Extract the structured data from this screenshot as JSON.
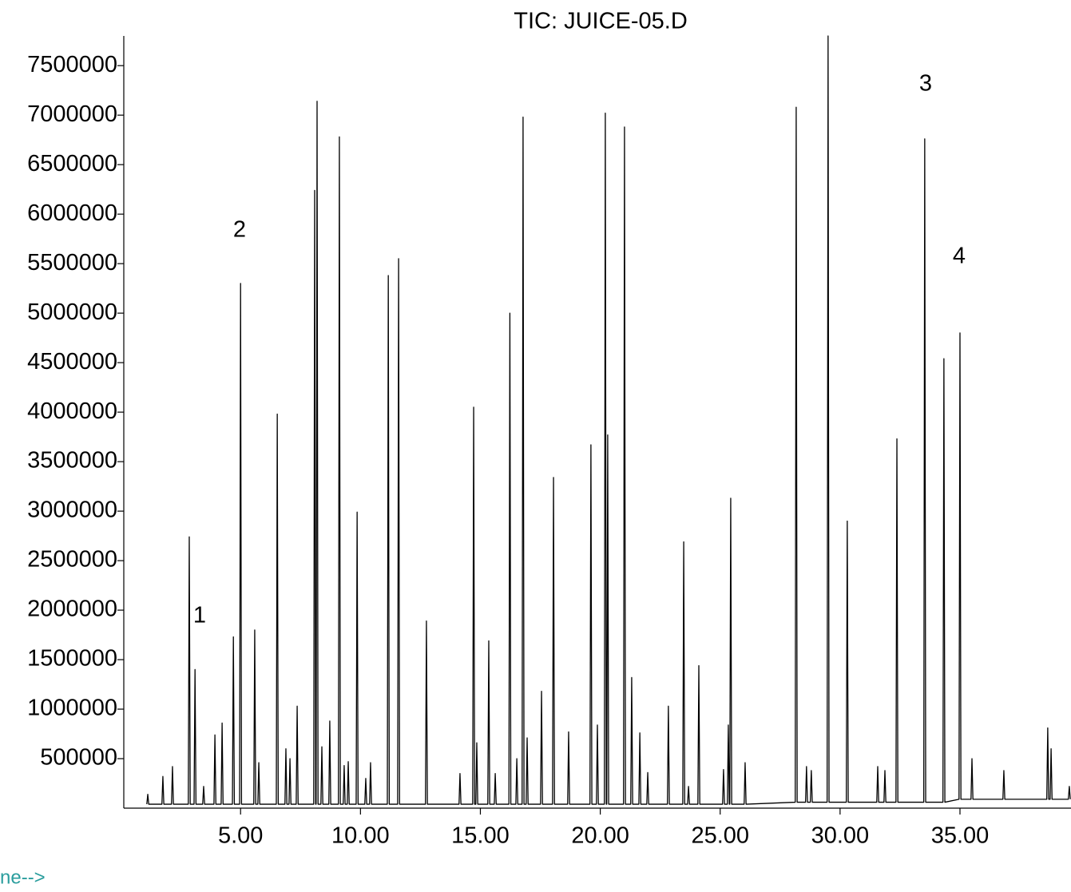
{
  "chart_data": {
    "type": "line",
    "title": "TIC: JUICE-05.D",
    "color": "#000000",
    "xlim": [
      0.13,
      39.63
    ],
    "ylim": [
      0,
      7800000
    ],
    "xticks": [
      {
        "value": 5,
        "label": "5.00"
      },
      {
        "value": 10,
        "label": "10.00"
      },
      {
        "value": 15,
        "label": "15.00"
      },
      {
        "value": 20,
        "label": "20.00"
      },
      {
        "value": 25,
        "label": "25.00"
      },
      {
        "value": 30,
        "label": "30.00"
      },
      {
        "value": 35,
        "label": "35.00"
      }
    ],
    "yticks": [
      500000,
      1000000,
      1500000,
      2000000,
      2500000,
      3000000,
      3500000,
      4000000,
      4500000,
      5000000,
      5500000,
      6000000,
      6500000,
      7000000,
      7500000
    ],
    "annotations": [
      "1",
      "2",
      "3",
      "4"
    ],
    "footer_text": "ne-->",
    "x": [
      1.09,
      1.13,
      1.17,
      1.72,
      1.76,
      1.8,
      2.12,
      2.16,
      2.2,
      2.82,
      2.86,
      2.9,
      3.06,
      3.1,
      3.14,
      3.42,
      3.46,
      3.5,
      3.89,
      3.93,
      3.97,
      4.19,
      4.23,
      4.27,
      4.66,
      4.7,
      4.74,
      4.96,
      5.0,
      5.04,
      5.55,
      5.59,
      5.63,
      5.72,
      5.76,
      5.8,
      6.49,
      6.53,
      6.57,
      6.85,
      6.89,
      6.93,
      7.02,
      7.06,
      7.1,
      7.32,
      7.36,
      7.4,
      8.05,
      8.09,
      8.13,
      8.15,
      8.19,
      8.23,
      8.35,
      8.39,
      8.43,
      8.68,
      8.72,
      8.76,
      9.08,
      9.12,
      9.16,
      9.28,
      9.32,
      9.36,
      9.45,
      9.49,
      9.53,
      9.82,
      9.86,
      9.9,
      10.18,
      10.22,
      10.26,
      10.38,
      10.42,
      10.46,
      11.12,
      11.16,
      11.2,
      11.55,
      11.59,
      11.63,
      12.71,
      12.75,
      12.79,
      14.11,
      14.15,
      14.19,
      14.68,
      14.72,
      14.76,
      14.81,
      14.85,
      14.89,
      15.31,
      15.35,
      15.39,
      15.58,
      15.62,
      15.66,
      16.19,
      16.23,
      16.27,
      16.48,
      16.52,
      16.56,
      16.74,
      16.78,
      16.82,
      16.91,
      16.95,
      16.99,
      17.51,
      17.55,
      17.59,
      18.01,
      18.05,
      18.09,
      18.64,
      18.68,
      18.72,
      19.57,
      19.61,
      19.65,
      19.84,
      19.88,
      19.92,
      20.17,
      20.21,
      20.25,
      20.27,
      20.31,
      20.35,
      20.97,
      21.01,
      21.05,
      21.27,
      21.31,
      21.35,
      21.61,
      21.65,
      21.69,
      21.94,
      21.98,
      22.02,
      22.8,
      22.84,
      22.88,
      23.44,
      23.48,
      23.52,
      23.64,
      23.68,
      23.72,
      24.07,
      24.11,
      24.15,
      25.1,
      25.14,
      25.18,
      25.3,
      25.34,
      25.38,
      25.4,
      25.44,
      25.48,
      26.0,
      26.04,
      26.08,
      28.13,
      28.17,
      28.21,
      28.56,
      28.6,
      28.64,
      28.76,
      28.8,
      28.84,
      29.46,
      29.5,
      29.54,
      30.26,
      30.3,
      30.34,
      31.53,
      31.57,
      31.61,
      31.83,
      31.87,
      31.91,
      32.33,
      32.37,
      32.41,
      33.49,
      33.53,
      33.57,
      34.29,
      34.33,
      34.37,
      34.96,
      35.0,
      35.04,
      35.46,
      35.5,
      35.54,
      36.79,
      36.83,
      36.87,
      38.62,
      38.66,
      38.7,
      38.76,
      38.8,
      38.84,
      39.52,
      39.56,
      39.6
    ],
    "values": [
      40000,
      140000,
      40000,
      40000,
      320000,
      40000,
      40000,
      420000,
      40000,
      40000,
      2740000,
      40000,
      40000,
      1400000,
      40000,
      40000,
      220000,
      40000,
      40000,
      740000,
      40000,
      40000,
      860000,
      40000,
      40000,
      1730000,
      40000,
      40000,
      5300000,
      40000,
      40000,
      1800000,
      40000,
      40000,
      460000,
      40000,
      40000,
      3980000,
      40000,
      40000,
      600000,
      40000,
      40000,
      500000,
      40000,
      40000,
      1030000,
      40000,
      40000,
      6240000,
      40000,
      40000,
      7140000,
      40000,
      40000,
      620000,
      40000,
      40000,
      880000,
      40000,
      40000,
      6780000,
      40000,
      40000,
      430000,
      40000,
      40000,
      470000,
      40000,
      40000,
      2990000,
      40000,
      40000,
      300000,
      40000,
      40000,
      460000,
      40000,
      40000,
      5380000,
      40000,
      40000,
      5550000,
      40000,
      40000,
      1890000,
      40000,
      40000,
      350000,
      40000,
      40000,
      4050000,
      40000,
      40000,
      660000,
      40000,
      40000,
      1690000,
      40000,
      40000,
      350000,
      40000,
      40000,
      5000000,
      40000,
      40000,
      500000,
      40000,
      40000,
      6980000,
      40000,
      40000,
      710000,
      40000,
      40000,
      1180000,
      40000,
      40000,
      3340000,
      40000,
      40000,
      770000,
      40000,
      40000,
      3670000,
      40000,
      40000,
      840000,
      40000,
      40000,
      7020000,
      40000,
      40000,
      3770000,
      40000,
      40000,
      6880000,
      40000,
      40000,
      1320000,
      40000,
      40000,
      760000,
      40000,
      40000,
      360000,
      40000,
      40000,
      1030000,
      40000,
      40000,
      2690000,
      40000,
      40000,
      220000,
      40000,
      40000,
      1440000,
      40000,
      40000,
      390000,
      40000,
      40000,
      840000,
      40000,
      40000,
      3130000,
      40000,
      40000,
      460000,
      40000,
      60000,
      7080000,
      60000,
      60000,
      420000,
      60000,
      60000,
      380000,
      60000,
      60000,
      7800000,
      60000,
      60000,
      2900000,
      60000,
      60000,
      420000,
      60000,
      60000,
      380000,
      60000,
      60000,
      3730000,
      60000,
      60000,
      6760000,
      60000,
      60000,
      4540000,
      60000,
      90000,
      4800000,
      90000,
      90000,
      500000,
      90000,
      90000,
      380000,
      90000,
      90000,
      810000,
      90000,
      90000,
      600000,
      90000,
      90000,
      220000,
      90000
    ]
  }
}
